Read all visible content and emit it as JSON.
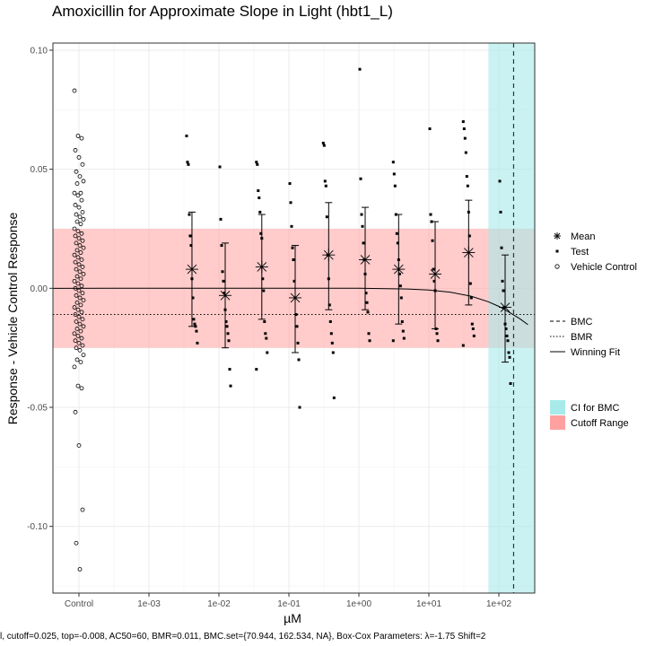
{
  "chart_data": {
    "type": "scatter",
    "title": "Amoxicillin for Approximate Slope in Light (hbt1_L)",
    "xlabel": "µM",
    "ylabel": "Response - Vehicle Control Response",
    "xscale": "log",
    "x_tick_labels": [
      "Control",
      "1e-03",
      "1e-02",
      "1e-01",
      "1e+00",
      "1e+01",
      "1e+02"
    ],
    "y_tick_labels": [
      "0.10",
      "0.05",
      "0.00",
      "-0.05",
      "-0.10"
    ],
    "ylim": [
      -0.128,
      0.103
    ],
    "grid": true,
    "legend_position": "right",
    "cutoff": 0.025,
    "bmr": 0.011,
    "bmc": 162.534,
    "bmc_ci": [
      70.944,
      162.534
    ],
    "legend_groups": [
      [
        "Mean",
        "Test",
        "Vehicle Control"
      ],
      [
        "BMC",
        "BMR",
        "Winning Fit"
      ],
      [
        "CI for BMC",
        "Cutoff Range"
      ]
    ],
    "colors": {
      "ci_band": "#a8eaea",
      "cutoff_band": "#ffa0a0",
      "points": "#000000",
      "grid": "#ebebeb"
    },
    "series": [
      {
        "name": "Mean",
        "concentrations": [
          0.00412,
          0.0123,
          0.041,
          0.123,
          0.37,
          1.23,
          3.7,
          12.3,
          37,
          123
        ],
        "means": [
          0.008,
          -0.003,
          0.009,
          -0.004,
          0.014,
          0.012,
          0.008,
          0.006,
          0.015,
          -0.008
        ],
        "sd_lower": [
          -0.016,
          -0.025,
          -0.013,
          -0.027,
          -0.009,
          -0.009,
          -0.015,
          -0.017,
          -0.007,
          -0.031
        ],
        "sd_upper": [
          0.032,
          0.019,
          0.031,
          0.018,
          0.036,
          0.034,
          0.031,
          0.028,
          0.037,
          0.014
        ]
      },
      {
        "name": "Test",
        "groups": [
          {
            "x": 0.00412,
            "y": [
              0.064,
              0.053,
              0.052,
              0.031,
              0.022,
              0.018,
              0.004,
              -0.004,
              -0.013,
              -0.015,
              -0.016,
              -0.018,
              -0.023
            ]
          },
          {
            "x": 0.0123,
            "y": [
              0.051,
              0.029,
              0.018,
              0.007,
              0.003,
              -0.002,
              -0.009,
              -0.014,
              -0.016,
              -0.019,
              -0.022,
              -0.034,
              -0.041
            ]
          },
          {
            "x": 0.041,
            "y": [
              0.053,
              0.052,
              0.041,
              0.038,
              0.032,
              0.023,
              0.021,
              0.004,
              -0.001,
              -0.014,
              -0.019,
              -0.021,
              -0.027,
              -0.034
            ]
          },
          {
            "x": 0.123,
            "y": [
              0.044,
              0.036,
              0.026,
              0.017,
              0.012,
              0.003,
              -0.004,
              -0.011,
              -0.016,
              -0.023,
              -0.03,
              -0.05
            ]
          },
          {
            "x": 0.37,
            "y": [
              0.061,
              0.06,
              0.045,
              0.043,
              0.03,
              0.014,
              0.004,
              -0.007,
              -0.014,
              -0.019,
              -0.023,
              -0.027,
              -0.046
            ]
          },
          {
            "x": 1.23,
            "y": [
              0.092,
              0.046,
              0.031,
              0.026,
              0.019,
              0.012,
              0.006,
              -0.002,
              -0.006,
              -0.01,
              -0.019,
              -0.022
            ]
          },
          {
            "x": 3.7,
            "y": [
              0.053,
              0.048,
              0.043,
              0.031,
              0.023,
              0.019,
              0.012,
              0.006,
              0.001,
              -0.004,
              -0.014,
              -0.018,
              -0.021,
              -0.022
            ]
          },
          {
            "x": 12.3,
            "y": [
              0.067,
              0.031,
              0.028,
              0.02,
              0.008,
              0.003,
              -0.001,
              -0.017,
              -0.019,
              -0.022
            ]
          },
          {
            "x": 37,
            "y": [
              0.07,
              0.067,
              0.063,
              0.057,
              0.047,
              0.043,
              0.032,
              0.022,
              0.002,
              -0.004,
              -0.015,
              -0.017,
              -0.02,
              -0.024
            ]
          },
          {
            "x": 123,
            "y": [
              0.045,
              0.032,
              0.017,
              0.003,
              -0.001,
              -0.008,
              -0.015,
              -0.017,
              -0.02,
              -0.022,
              -0.027,
              -0.029,
              -0.04
            ]
          }
        ]
      },
      {
        "name": "Vehicle Control",
        "x": "Control",
        "y": [
          0.083,
          0.064,
          0.063,
          0.058,
          0.055,
          0.052,
          0.049,
          0.047,
          0.045,
          0.044,
          0.04,
          0.04,
          0.039,
          0.037,
          0.035,
          0.034,
          0.032,
          0.031,
          0.03,
          0.029,
          0.028,
          0.027,
          0.025,
          0.024,
          0.023,
          0.022,
          0.021,
          0.02,
          0.019,
          0.018,
          0.017,
          0.016,
          0.015,
          0.014,
          0.013,
          0.012,
          0.011,
          0.01,
          0.009,
          0.008,
          0.007,
          0.006,
          0.005,
          0.004,
          0.003,
          0.002,
          0.001,
          0.0,
          -0.001,
          -0.002,
          -0.003,
          -0.004,
          -0.005,
          -0.006,
          -0.007,
          -0.008,
          -0.009,
          -0.01,
          -0.011,
          -0.012,
          -0.013,
          -0.014,
          -0.015,
          -0.016,
          -0.017,
          -0.018,
          -0.019,
          -0.02,
          -0.021,
          -0.022,
          -0.023,
          -0.024,
          -0.025,
          -0.026,
          -0.028,
          -0.03,
          -0.031,
          -0.033,
          -0.041,
          -0.042,
          -0.052,
          -0.066,
          -0.093,
          -0.107,
          -0.118
        ]
      },
      {
        "name": "Winning Fit",
        "x": [
          0.0004,
          1,
          5,
          10,
          20,
          40,
          70,
          100,
          140,
          200,
          260
        ],
        "y": [
          0.0,
          0.0,
          -0.0003,
          -0.0007,
          -0.0016,
          -0.0033,
          -0.0056,
          -0.0076,
          -0.01,
          -0.0128,
          -0.0153
        ]
      }
    ],
    "footer": "l, cutoff=0.025, top=-0.008, AC50=60, BMR=0.011, BMC.set={70.944, 162.534, NA}, Box-Cox Parameters: λ=-1.75 Shift=2"
  }
}
